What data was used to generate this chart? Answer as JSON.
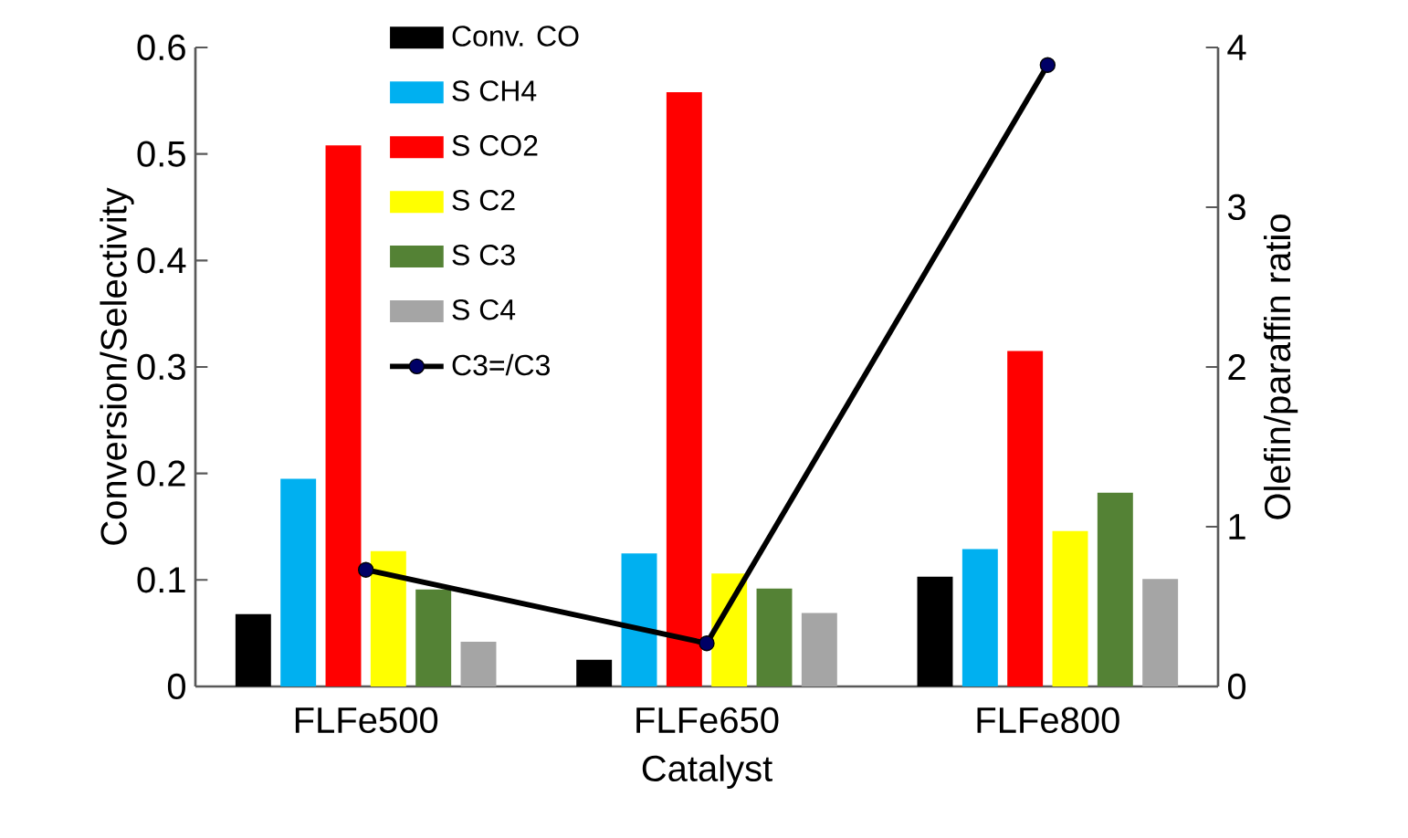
{
  "chart_data": {
    "type": "bar",
    "xlabel": "Catalyst",
    "ylabel": "Conversion/Selectivity",
    "y2label": "Olefin/paraffin ratio",
    "categories": [
      "FLFe500",
      "FLFe650",
      "FLFe800"
    ],
    "series": [
      {
        "name": "Conv. CO",
        "color": "#000000",
        "values": [
          0.068,
          0.025,
          0.103
        ]
      },
      {
        "name": "S CH4",
        "color": "#00b0f0",
        "values": [
          0.195,
          0.125,
          0.129
        ]
      },
      {
        "name": "S CO2",
        "color": "#ff0000",
        "values": [
          0.508,
          0.558,
          0.315
        ]
      },
      {
        "name": "S C2",
        "color": "#ffff00",
        "values": [
          0.127,
          0.106,
          0.146
        ]
      },
      {
        "name": "S C3",
        "color": "#548235",
        "values": [
          0.091,
          0.092,
          0.182
        ]
      },
      {
        "name": "S C4",
        "color": "#a5a5a5",
        "values": [
          0.042,
          0.069,
          0.101
        ]
      },
      {
        "name": "C3=/C3",
        "type": "line",
        "axis": "y2",
        "color": "#000000",
        "marker": "circle",
        "values": [
          0.73,
          0.27,
          3.89
        ]
      }
    ],
    "ylim": [
      0,
      0.6
    ],
    "yticks": [
      0,
      0.1,
      0.2,
      0.3,
      0.4,
      0.5,
      0.6
    ],
    "y2lim": [
      0,
      4
    ],
    "y2ticks": [
      0,
      1,
      2,
      3,
      4
    ],
    "grid": false,
    "legend": "top"
  }
}
